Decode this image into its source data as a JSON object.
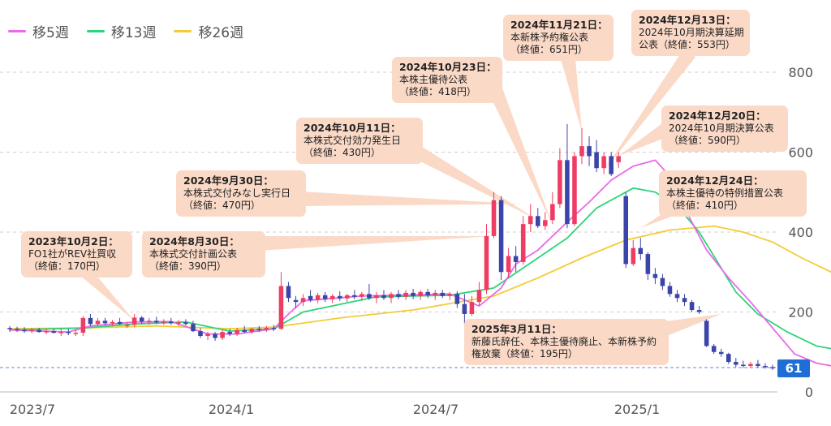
{
  "chart_data": {
    "type": "candlestick",
    "legend": [
      {
        "name": "移5週",
        "color": "#e86ae8"
      },
      {
        "name": "移13週",
        "color": "#2ed47a"
      },
      {
        "name": "移26週",
        "color": "#f2cc35"
      }
    ],
    "y_axis": {
      "ticks": [
        "800",
        "600",
        "400",
        "200",
        "0"
      ],
      "range": [
        0,
        850
      ],
      "position": "right"
    },
    "x_axis": {
      "ticks": [
        "2023/7",
        "2024/1",
        "2024/7",
        "2025/1"
      ]
    },
    "grid": "horizontal dashed",
    "current_price": {
      "value": 61,
      "label": "61"
    },
    "candles": [
      {
        "o": 160,
        "h": 165,
        "l": 150,
        "c": 158
      },
      {
        "o": 158,
        "h": 163,
        "l": 150,
        "c": 155
      },
      {
        "o": 155,
        "h": 162,
        "l": 148,
        "c": 152
      },
      {
        "o": 153,
        "h": 160,
        "l": 147,
        "c": 155
      },
      {
        "o": 155,
        "h": 160,
        "l": 148,
        "c": 150
      },
      {
        "o": 150,
        "h": 158,
        "l": 145,
        "c": 152
      },
      {
        "o": 152,
        "h": 158,
        "l": 146,
        "c": 148
      },
      {
        "o": 148,
        "h": 158,
        "l": 140,
        "c": 150
      },
      {
        "o": 150,
        "h": 158,
        "l": 142,
        "c": 148
      },
      {
        "o": 145,
        "h": 155,
        "l": 140,
        "c": 148
      },
      {
        "o": 148,
        "h": 190,
        "l": 140,
        "c": 185
      },
      {
        "o": 185,
        "h": 195,
        "l": 165,
        "c": 170
      },
      {
        "o": 170,
        "h": 185,
        "l": 165,
        "c": 178
      },
      {
        "o": 178,
        "h": 185,
        "l": 168,
        "c": 172
      },
      {
        "o": 172,
        "h": 180,
        "l": 165,
        "c": 175
      },
      {
        "o": 175,
        "h": 185,
        "l": 168,
        "c": 170
      },
      {
        "o": 165,
        "h": 175,
        "l": 160,
        "c": 168
      },
      {
        "o": 168,
        "h": 195,
        "l": 162,
        "c": 186
      },
      {
        "o": 186,
        "h": 190,
        "l": 170,
        "c": 176
      },
      {
        "o": 176,
        "h": 185,
        "l": 168,
        "c": 178
      },
      {
        "o": 178,
        "h": 188,
        "l": 170,
        "c": 174
      },
      {
        "o": 174,
        "h": 182,
        "l": 168,
        "c": 176
      },
      {
        "o": 176,
        "h": 185,
        "l": 168,
        "c": 172
      },
      {
        "o": 172,
        "h": 180,
        "l": 165,
        "c": 174
      },
      {
        "o": 174,
        "h": 182,
        "l": 166,
        "c": 170
      },
      {
        "o": 170,
        "h": 178,
        "l": 150,
        "c": 152
      },
      {
        "o": 152,
        "h": 160,
        "l": 135,
        "c": 140
      },
      {
        "o": 140,
        "h": 150,
        "l": 130,
        "c": 145
      },
      {
        "o": 145,
        "h": 150,
        "l": 128,
        "c": 135
      },
      {
        "o": 135,
        "h": 155,
        "l": 130,
        "c": 150
      },
      {
        "o": 150,
        "h": 158,
        "l": 140,
        "c": 145
      },
      {
        "o": 145,
        "h": 160,
        "l": 140,
        "c": 155
      },
      {
        "o": 155,
        "h": 165,
        "l": 148,
        "c": 150
      },
      {
        "o": 150,
        "h": 160,
        "l": 145,
        "c": 158
      },
      {
        "o": 158,
        "h": 165,
        "l": 150,
        "c": 155
      },
      {
        "o": 155,
        "h": 165,
        "l": 150,
        "c": 160
      },
      {
        "o": 160,
        "h": 168,
        "l": 152,
        "c": 158
      },
      {
        "o": 158,
        "h": 300,
        "l": 155,
        "c": 265
      },
      {
        "o": 265,
        "h": 275,
        "l": 225,
        "c": 235
      },
      {
        "o": 230,
        "h": 240,
        "l": 210,
        "c": 225
      },
      {
        "o": 225,
        "h": 245,
        "l": 215,
        "c": 235
      },
      {
        "o": 240,
        "h": 255,
        "l": 225,
        "c": 230
      },
      {
        "o": 230,
        "h": 248,
        "l": 222,
        "c": 242
      },
      {
        "o": 242,
        "h": 250,
        "l": 225,
        "c": 232
      },
      {
        "o": 232,
        "h": 245,
        "l": 222,
        "c": 240
      },
      {
        "o": 240,
        "h": 252,
        "l": 228,
        "c": 234
      },
      {
        "o": 234,
        "h": 245,
        "l": 225,
        "c": 242
      },
      {
        "o": 242,
        "h": 255,
        "l": 232,
        "c": 238
      },
      {
        "o": 238,
        "h": 250,
        "l": 228,
        "c": 245
      },
      {
        "o": 245,
        "h": 270,
        "l": 230,
        "c": 235
      },
      {
        "o": 235,
        "h": 250,
        "l": 222,
        "c": 242
      },
      {
        "o": 242,
        "h": 255,
        "l": 230,
        "c": 235
      },
      {
        "o": 235,
        "h": 250,
        "l": 222,
        "c": 245
      },
      {
        "o": 245,
        "h": 255,
        "l": 232,
        "c": 238
      },
      {
        "o": 238,
        "h": 255,
        "l": 230,
        "c": 248
      },
      {
        "o": 248,
        "h": 258,
        "l": 232,
        "c": 240
      },
      {
        "o": 240,
        "h": 255,
        "l": 230,
        "c": 250
      },
      {
        "o": 250,
        "h": 258,
        "l": 235,
        "c": 242
      },
      {
        "o": 242,
        "h": 255,
        "l": 230,
        "c": 248
      },
      {
        "o": 248,
        "h": 255,
        "l": 235,
        "c": 240
      },
      {
        "o": 240,
        "h": 250,
        "l": 230,
        "c": 245
      },
      {
        "o": 245,
        "h": 252,
        "l": 210,
        "c": 220
      },
      {
        "o": 220,
        "h": 245,
        "l": 170,
        "c": 195
      },
      {
        "o": 195,
        "h": 240,
        "l": 190,
        "c": 225
      },
      {
        "o": 225,
        "h": 275,
        "l": 215,
        "c": 255
      },
      {
        "o": 255,
        "h": 420,
        "l": 245,
        "c": 390
      },
      {
        "o": 390,
        "h": 500,
        "l": 385,
        "c": 480
      },
      {
        "o": 480,
        "h": 490,
        "l": 280,
        "c": 300
      },
      {
        "o": 300,
        "h": 360,
        "l": 285,
        "c": 340
      },
      {
        "o": 340,
        "h": 365,
        "l": 300,
        "c": 325
      },
      {
        "o": 325,
        "h": 440,
        "l": 318,
        "c": 420
      },
      {
        "o": 420,
        "h": 470,
        "l": 400,
        "c": 440
      },
      {
        "o": 440,
        "h": 460,
        "l": 410,
        "c": 415
      },
      {
        "o": 415,
        "h": 450,
        "l": 405,
        "c": 430
      },
      {
        "o": 430,
        "h": 500,
        "l": 420,
        "c": 470
      },
      {
        "o": 470,
        "h": 610,
        "l": 460,
        "c": 580
      },
      {
        "o": 580,
        "h": 670,
        "l": 410,
        "c": 420
      },
      {
        "o": 420,
        "h": 600,
        "l": 415,
        "c": 590
      },
      {
        "o": 590,
        "h": 660,
        "l": 570,
        "c": 615
      },
      {
        "o": 615,
        "h": 640,
        "l": 565,
        "c": 590
      },
      {
        "o": 600,
        "h": 630,
        "l": 550,
        "c": 560
      },
      {
        "o": 560,
        "h": 600,
        "l": 545,
        "c": 590
      },
      {
        "o": 590,
        "h": 600,
        "l": 540,
        "c": 545
      },
      {
        "o": 575,
        "h": 600,
        "l": 560,
        "c": 590
      },
      {
        "o": 490,
        "h": 500,
        "l": 310,
        "c": 320
      },
      {
        "o": 320,
        "h": 380,
        "l": 315,
        "c": 360
      },
      {
        "o": 360,
        "h": 385,
        "l": 330,
        "c": 345
      },
      {
        "o": 345,
        "h": 350,
        "l": 280,
        "c": 295
      },
      {
        "o": 295,
        "h": 310,
        "l": 270,
        "c": 285
      },
      {
        "o": 285,
        "h": 295,
        "l": 255,
        "c": 265
      },
      {
        "o": 265,
        "h": 275,
        "l": 238,
        "c": 245
      },
      {
        "o": 245,
        "h": 255,
        "l": 225,
        "c": 235
      },
      {
        "o": 235,
        "h": 245,
        "l": 215,
        "c": 225
      },
      {
        "o": 225,
        "h": 230,
        "l": 200,
        "c": 205
      },
      {
        "o": 205,
        "h": 215,
        "l": 195,
        "c": 200
      },
      {
        "o": 178,
        "h": 182,
        "l": 112,
        "c": 115
      },
      {
        "o": 115,
        "h": 120,
        "l": 95,
        "c": 100
      },
      {
        "o": 100,
        "h": 108,
        "l": 88,
        "c": 95
      },
      {
        "o": 95,
        "h": 98,
        "l": 70,
        "c": 75
      },
      {
        "o": 75,
        "h": 85,
        "l": 62,
        "c": 68
      },
      {
        "o": 68,
        "h": 78,
        "l": 60,
        "c": 65
      },
      {
        "o": 65,
        "h": 75,
        "l": 60,
        "c": 70
      },
      {
        "o": 70,
        "h": 80,
        "l": 60,
        "c": 65
      },
      {
        "o": 65,
        "h": 72,
        "l": 58,
        "c": 62
      },
      {
        "o": 62,
        "h": 68,
        "l": 55,
        "c": 61
      }
    ],
    "ma26": [
      {
        "i": 0,
        "v": 158
      },
      {
        "i": 10,
        "v": 160
      },
      {
        "i": 20,
        "v": 165
      },
      {
        "i": 30,
        "v": 158
      },
      {
        "i": 36,
        "v": 162
      },
      {
        "i": 45,
        "v": 185
      },
      {
        "i": 55,
        "v": 205
      },
      {
        "i": 66,
        "v": 240
      },
      {
        "i": 72,
        "v": 285
      },
      {
        "i": 78,
        "v": 335
      },
      {
        "i": 84,
        "v": 380
      },
      {
        "i": 90,
        "v": 405
      },
      {
        "i": 96,
        "v": 415
      },
      {
        "i": 100,
        "v": 400
      },
      {
        "i": 104,
        "v": 375
      },
      {
        "i": 108,
        "v": 335
      },
      {
        "i": 112,
        "v": 300
      },
      {
        "i": 113,
        "v": 258
      }
    ],
    "ma13": [
      {
        "i": 0,
        "v": 155
      },
      {
        "i": 10,
        "v": 160
      },
      {
        "i": 17,
        "v": 170
      },
      {
        "i": 24,
        "v": 175
      },
      {
        "i": 30,
        "v": 152
      },
      {
        "i": 36,
        "v": 158
      },
      {
        "i": 40,
        "v": 200
      },
      {
        "i": 50,
        "v": 238
      },
      {
        "i": 60,
        "v": 242
      },
      {
        "i": 66,
        "v": 260
      },
      {
        "i": 70,
        "v": 310
      },
      {
        "i": 76,
        "v": 385
      },
      {
        "i": 80,
        "v": 460
      },
      {
        "i": 85,
        "v": 510
      },
      {
        "i": 88,
        "v": 500
      },
      {
        "i": 91,
        "v": 465
      },
      {
        "i": 94,
        "v": 400
      },
      {
        "i": 99,
        "v": 250
      },
      {
        "i": 102,
        "v": 195
      },
      {
        "i": 106,
        "v": 150
      },
      {
        "i": 110,
        "v": 115
      },
      {
        "i": 113,
        "v": 105
      }
    ],
    "ma5": [
      {
        "i": 0,
        "v": 155
      },
      {
        "i": 8,
        "v": 150
      },
      {
        "i": 11,
        "v": 165
      },
      {
        "i": 17,
        "v": 175
      },
      {
        "i": 22,
        "v": 176
      },
      {
        "i": 27,
        "v": 145
      },
      {
        "i": 31,
        "v": 145
      },
      {
        "i": 36,
        "v": 158
      },
      {
        "i": 38,
        "v": 195
      },
      {
        "i": 40,
        "v": 228
      },
      {
        "i": 48,
        "v": 240
      },
      {
        "i": 60,
        "v": 245
      },
      {
        "i": 62,
        "v": 230
      },
      {
        "i": 64,
        "v": 215
      },
      {
        "i": 67,
        "v": 260
      },
      {
        "i": 69,
        "v": 320
      },
      {
        "i": 72,
        "v": 355
      },
      {
        "i": 76,
        "v": 425
      },
      {
        "i": 79,
        "v": 475
      },
      {
        "i": 82,
        "v": 530
      },
      {
        "i": 85,
        "v": 565
      },
      {
        "i": 88,
        "v": 580
      },
      {
        "i": 90,
        "v": 540
      },
      {
        "i": 92,
        "v": 460
      },
      {
        "i": 95,
        "v": 355
      },
      {
        "i": 98,
        "v": 285
      },
      {
        "i": 101,
        "v": 225
      },
      {
        "i": 104,
        "v": 160
      },
      {
        "i": 107,
        "v": 95
      },
      {
        "i": 110,
        "v": 72
      },
      {
        "i": 113,
        "v": 62
      }
    ],
    "annotations": [
      {
        "title": "2023年10月2日：",
        "lines": [
          "FO1社がREV社買収",
          "（終値：170円）"
        ],
        "target": {
          "i": 17,
          "v": 178
        }
      },
      {
        "title": "2024年8月30日：",
        "lines": [
          "本株式交付計画公表",
          "（終値：390円）"
        ],
        "target": {
          "i": 66,
          "v": 390
        }
      },
      {
        "title": "2024年9月30日：",
        "lines": [
          "本株式交付みなし実行日",
          "（終値：470円）"
        ],
        "target": {
          "i": 70,
          "v": 470
        }
      },
      {
        "title": "2024年10月11日：",
        "lines": [
          "本株式交付効力発生日",
          "（終値：430円）"
        ],
        "target": {
          "i": 72,
          "v": 430
        }
      },
      {
        "title": "2024年10月23日：",
        "lines": [
          "本株主優待公表",
          "（終値：418円）"
        ],
        "target": {
          "i": 74,
          "v": 418
        }
      },
      {
        "title": "2024年11月21日：",
        "lines": [
          "本新株予約権公表",
          "（終値：651円）"
        ],
        "target": {
          "i": 78,
          "v": 651
        }
      },
      {
        "title": "2024年12月13日：",
        "lines": [
          "2024年10月期決算延期",
          "公表（終値：553円）"
        ],
        "target": {
          "i": 81,
          "v": 553
        }
      },
      {
        "title": "2024年12月20日：",
        "lines": [
          "2024年10月期決算公表",
          "（終値：590円）"
        ],
        "target": {
          "i": 83,
          "v": 590
        }
      },
      {
        "title": "2024年12月24日：",
        "lines": [
          "本株主優待の特例措置公表",
          "（終値：410円）"
        ],
        "target": {
          "i": 86,
          "v": 410
        }
      },
      {
        "title": "2025年3月11日：",
        "lines": [
          "新藤氏辞任、本株主優待廃止、本新株予約",
          "権放棄（終値：195円）"
        ],
        "target": {
          "i": 97,
          "v": 195
        }
      }
    ]
  }
}
